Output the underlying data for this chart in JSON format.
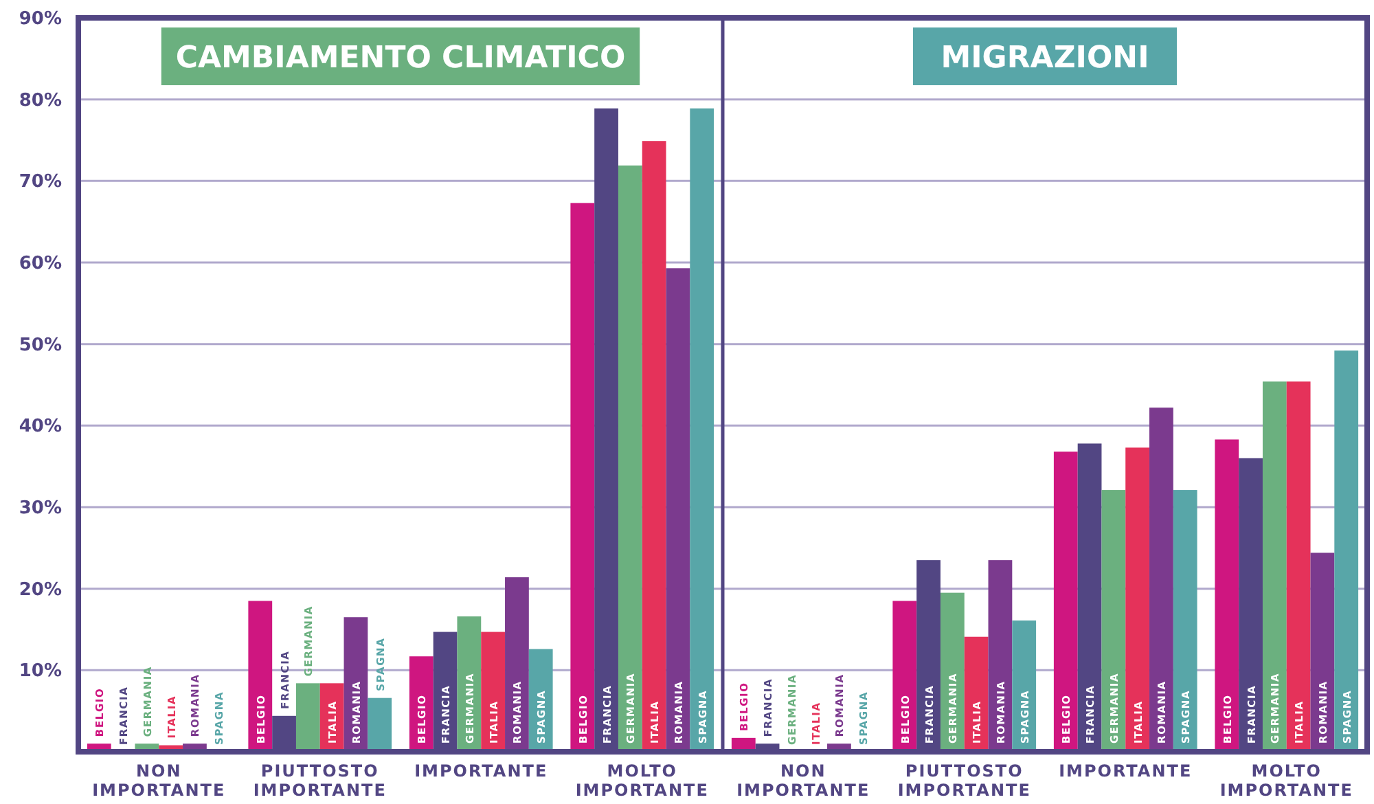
{
  "chart_data": [
    {
      "type": "bar",
      "title": "CAMBIAMENTO CLIMATICO",
      "categories": [
        "NON IMPORTANTE",
        "PIUTTOSTO IMPORTANTE",
        "IMPORTANTE",
        "MOLTO IMPORTANTE"
      ],
      "series": [
        {
          "name": "BELGIO",
          "color": "#cf1680",
          "values": [
            1,
            18.5,
            11.7,
            67.3
          ]
        },
        {
          "name": "FRANCIA",
          "color": "#524683",
          "values": [
            0,
            4.4,
            14.7,
            78.9
          ]
        },
        {
          "name": "GERMANIA",
          "color": "#6bb07f",
          "values": [
            1,
            8.4,
            16.6,
            71.9
          ]
        },
        {
          "name": "ITALIA",
          "color": "#e5325a",
          "values": [
            0.8,
            8.4,
            14.7,
            74.9
          ]
        },
        {
          "name": "ROMANIA",
          "color": "#7b3a8e",
          "values": [
            1,
            16.5,
            21.4,
            59.3
          ]
        },
        {
          "name": "SPAGNA",
          "color": "#58a6a8",
          "values": [
            0,
            6.6,
            12.6,
            78.9
          ]
        }
      ],
      "ylim": [
        0,
        90
      ],
      "yticks": [
        {
          "value": 10,
          "label": "10%"
        },
        {
          "value": 20,
          "label": "20%"
        },
        {
          "value": 30,
          "label": "30%"
        },
        {
          "value": 40,
          "label": "40%"
        },
        {
          "value": 50,
          "label": "50%"
        },
        {
          "value": 60,
          "label": "60%"
        },
        {
          "value": 70,
          "label": "70%"
        },
        {
          "value": 80,
          "label": "80%"
        },
        {
          "value": 90,
          "label": "90%"
        }
      ],
      "grid": "y"
    },
    {
      "type": "bar",
      "title": "MIGRAZIONI",
      "categories": [
        "NON IMPORTANTE",
        "PIUTTOSTO IMPORTANTE",
        "IMPORTANTE",
        "MOLTO IMPORTANTE"
      ],
      "series": [
        {
          "name": "BELGIO",
          "color": "#cf1680",
          "values": [
            1.7,
            18.5,
            36.8,
            38.3
          ]
        },
        {
          "name": "FRANCIA",
          "color": "#524683",
          "values": [
            1,
            23.5,
            37.8,
            36
          ]
        },
        {
          "name": "GERMANIA",
          "color": "#6bb07f",
          "values": [
            0,
            19.5,
            32.1,
            45.4
          ]
        },
        {
          "name": "ITALIA",
          "color": "#e5325a",
          "values": [
            0,
            14.1,
            37.3,
            45.4
          ]
        },
        {
          "name": "ROMANIA",
          "color": "#7b3a8e",
          "values": [
            1,
            23.5,
            42.2,
            24.4
          ]
        },
        {
          "name": "SPAGNA",
          "color": "#58a6a8",
          "values": [
            0,
            16.1,
            32.1,
            49.2
          ]
        }
      ],
      "ylim": [
        0,
        90
      ],
      "yticks": [
        10,
        20,
        30,
        40,
        50,
        60,
        70,
        80,
        90
      ],
      "grid": "y",
      "tick_labels": "x"
    }
  ]
}
